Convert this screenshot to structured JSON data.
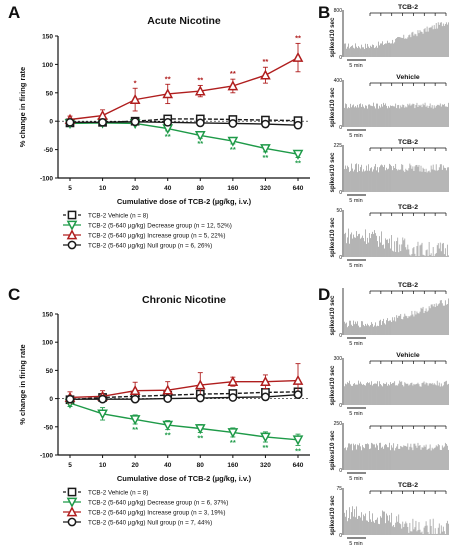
{
  "panel_letters": [
    "A",
    "B",
    "C",
    "D"
  ],
  "chart_data": [
    {
      "type": "line",
      "panel": "A",
      "title": "Acute Nicotine",
      "xlabel": "Cumulative dose of TCB-2 (µg/kg, i.v.)",
      "ylabel": "% change in firing rate",
      "categories": [
        "5",
        "10",
        "20",
        "40",
        "80",
        "160",
        "320",
        "640"
      ],
      "ylim": [
        -100,
        150
      ],
      "yticks": [
        -100,
        -50,
        0,
        50,
        100,
        150
      ],
      "series": [
        {
          "name": "TCB-2 Vehicle (n = 8)",
          "color": "#1a1a1a",
          "marker": "square",
          "dashed": true,
          "values": [
            -3,
            -2,
            0,
            4,
            4,
            3,
            2,
            1
          ],
          "errors": [
            3,
            3,
            3,
            3,
            3,
            3,
            3,
            4
          ],
          "stars": [
            "",
            "",
            "",
            "",
            "",
            "",
            "",
            ""
          ]
        },
        {
          "name": "TCB-2 (5-640 µg/kg) Decrease group (n = 12, 52%)",
          "color": "#1e9a48",
          "marker": "triangle-down",
          "dashed": false,
          "values": [
            -4,
            -3,
            -4,
            -13,
            -25,
            -35,
            -48,
            -58
          ],
          "errors": [
            3,
            3,
            3,
            4,
            5,
            5,
            6,
            6
          ],
          "stars": [
            "",
            "",
            "",
            "**",
            "**",
            "**",
            "**",
            "**"
          ]
        },
        {
          "name": "TCB-2 (5-640 µg/kg) Increase group (n = 5, 22%)",
          "color": "#b01e1e",
          "marker": "triangle-up",
          "dashed": false,
          "values": [
            3,
            10,
            38,
            48,
            53,
            62,
            81,
            112
          ],
          "errors": [
            6,
            10,
            20,
            17,
            10,
            12,
            14,
            25
          ],
          "stars": [
            "",
            "",
            "*",
            "**",
            "**",
            "**",
            "**",
            "**"
          ]
        },
        {
          "name": "TCB-2 (5-640 µg/kg) Null group (n = 6, 26%)",
          "color": "#1a1a1a",
          "marker": "circle",
          "dashed": false,
          "values": [
            -2,
            -2,
            -1,
            -2,
            -3,
            -4,
            -5,
            -7
          ],
          "errors": [
            3,
            3,
            3,
            3,
            3,
            3,
            4,
            4
          ],
          "stars": [
            "",
            "",
            "",
            "",
            "",
            "",
            "",
            ""
          ]
        }
      ]
    },
    {
      "type": "line",
      "panel": "C",
      "title": "Chronic Nicotine",
      "xlabel": "Cumulative dose of TCB-2 (µg/kg, i.v.)",
      "ylabel": "% change in firing rate",
      "categories": [
        "5",
        "10",
        "20",
        "40",
        "80",
        "160",
        "320",
        "640"
      ],
      "ylim": [
        -100,
        150
      ],
      "yticks": [
        -100,
        -50,
        0,
        50,
        100,
        150
      ],
      "series": [
        {
          "name": "TCB-2 Vehicle (n = 8)",
          "color": "#1a1a1a",
          "marker": "square",
          "dashed": true,
          "values": [
            -2,
            2,
            4,
            6,
            8,
            9,
            11,
            12
          ],
          "errors": [
            4,
            4,
            4,
            5,
            5,
            5,
            6,
            6
          ],
          "stars": [
            "",
            "",
            "",
            "",
            "",
            "",
            "",
            ""
          ]
        },
        {
          "name": "TCB-2 (5-640 µg/kg) Decrease group (n = 6, 37%)",
          "color": "#1e9a48",
          "marker": "triangle-down",
          "dashed": false,
          "values": [
            -8,
            -27,
            -37,
            -47,
            -53,
            -60,
            -68,
            -73
          ],
          "errors": [
            6,
            11,
            8,
            8,
            7,
            8,
            9,
            10
          ],
          "stars": [
            "",
            "",
            "**",
            "**",
            "**",
            "**",
            "**",
            "**"
          ]
        },
        {
          "name": "TCB-2 (5-640 µg/kg) Increase group (n = 3, 19%)",
          "color": "#b01e1e",
          "marker": "triangle-up",
          "dashed": false,
          "values": [
            2,
            4,
            14,
            15,
            24,
            30,
            30,
            32
          ],
          "errors": [
            10,
            10,
            15,
            15,
            22,
            8,
            12,
            30
          ],
          "stars": [
            "",
            "",
            "",
            "",
            "",
            "",
            "",
            ""
          ]
        },
        {
          "name": "TCB-2 (5-640 µg/kg) Null group (n = 7, 44%)",
          "color": "#1a1a1a",
          "marker": "circle",
          "dashed": false,
          "values": [
            -1,
            -1,
            -1,
            0,
            1,
            2,
            3,
            7
          ],
          "errors": [
            3,
            3,
            3,
            3,
            3,
            3,
            4,
            4
          ],
          "stars": [
            "",
            "",
            "",
            "",
            "",
            "",
            "",
            ""
          ]
        }
      ]
    },
    {
      "type": "bar",
      "panel": "B",
      "title": "TCB-2",
      "ylabel": "spikes/10 sec",
      "yticks": [
        0,
        800
      ],
      "ylim": [
        0,
        800
      ],
      "scale_label": "5 min",
      "trend": "increase",
      "base": 0.28,
      "end": 0.92,
      "noise": 0.08
    },
    {
      "type": "bar",
      "panel": "B",
      "title": "Vehicle",
      "ylabel": "spikes/10 sec",
      "yticks": [
        0,
        400
      ],
      "ylim": [
        0,
        400
      ],
      "scale_label": "5 min",
      "trend": "flat",
      "base": 0.55,
      "end": 0.55,
      "noise": 0.08
    },
    {
      "type": "bar",
      "panel": "B",
      "title": "TCB-2",
      "ylabel": "spikes/10 sec",
      "yticks": [
        0,
        225
      ],
      "ylim": [
        0,
        225
      ],
      "scale_label": "5 min",
      "trend": "flat",
      "base": 0.62,
      "end": 0.6,
      "noise": 0.12
    },
    {
      "type": "bar",
      "panel": "B",
      "title": "TCB-2",
      "ylabel": "spikes/10 sec",
      "yticks": [
        0,
        50
      ],
      "ylim": [
        0,
        50
      ],
      "scale_label": "5 min",
      "trend": "decrease",
      "base": 0.55,
      "end": 0.18,
      "noise": 0.22
    },
    {
      "type": "bar",
      "panel": "D",
      "title": "TCB-2",
      "ylabel": "spikes/10 sec",
      "yticks": [
        0
      ],
      "ylim": [
        0,
        800
      ],
      "scale_label": "5 min",
      "trend": "increase",
      "base": 0.28,
      "end": 0.88,
      "noise": 0.09
    },
    {
      "type": "bar",
      "panel": "D",
      "title": "Vehicle",
      "ylabel": "spikes/10 sec",
      "yticks": [
        0,
        300
      ],
      "ylim": [
        0,
        300
      ],
      "scale_label": "5 min",
      "trend": "flat",
      "base": 0.55,
      "end": 0.55,
      "noise": 0.08
    },
    {
      "type": "bar",
      "panel": "D",
      "title": "",
      "ylabel": "spikes/10 sec",
      "yticks": [
        0,
        250
      ],
      "ylim": [
        0,
        250
      ],
      "scale_label": "5 min",
      "trend": "flat",
      "base": 0.6,
      "end": 0.62,
      "noise": 0.1
    },
    {
      "type": "bar",
      "panel": "D",
      "title": "TCB-2",
      "ylabel": "spikes/10 sec",
      "yticks": [
        0,
        75
      ],
      "ylim": [
        0,
        75
      ],
      "scale_label": "5 min",
      "trend": "decrease",
      "base": 0.55,
      "end": 0.2,
      "noise": 0.22
    }
  ]
}
